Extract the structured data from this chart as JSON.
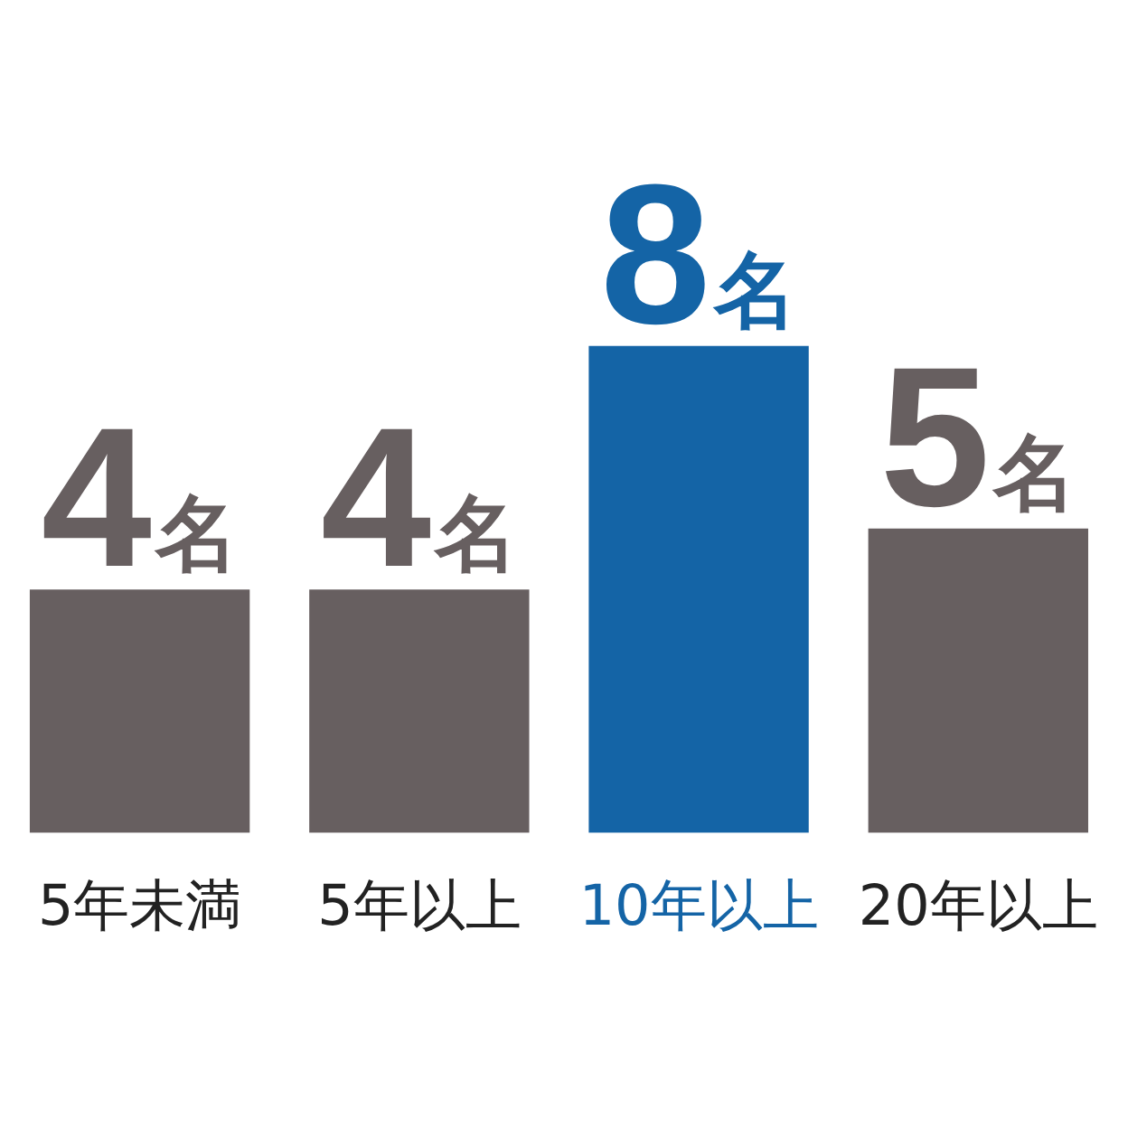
{
  "chart_data": {
    "type": "bar",
    "categories": [
      "5年未満",
      "5年以上",
      "10年以上",
      "20年以上"
    ],
    "values": [
      4,
      4,
      8,
      5
    ],
    "colors": [
      "#675f60",
      "#675f60",
      "#1464a6",
      "#675f60"
    ],
    "value_labels": [
      "4名",
      "4名",
      "8名",
      "5名"
    ]
  }
}
